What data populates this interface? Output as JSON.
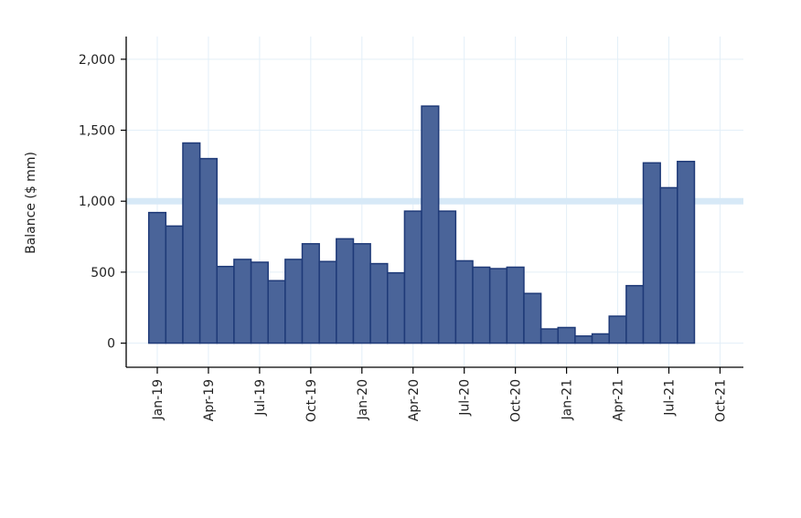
{
  "chart_data": {
    "type": "bar",
    "title": "",
    "xlabel": "",
    "ylabel": "Balance ($ mm)",
    "ylim": [
      -170,
      2160
    ],
    "yticks": [
      0,
      500,
      1000,
      1500,
      2000
    ],
    "ytick_labels": [
      "0",
      "500",
      "1,000",
      "1,500",
      "2,000"
    ],
    "x_tick_labels": [
      "Jan-19",
      "Apr-19",
      "Jul-19",
      "Oct-19",
      "Jan-20",
      "Apr-20",
      "Jul-20",
      "Oct-20",
      "Jan-21",
      "Apr-21",
      "Jul-21",
      "Oct-21"
    ],
    "grid": true,
    "reference_line": 1000,
    "categories": [
      "Jan-19",
      "Feb-19",
      "Mar-19",
      "Apr-19",
      "May-19",
      "Jun-19",
      "Jul-19",
      "Aug-19",
      "Sep-19",
      "Oct-19",
      "Nov-19",
      "Dec-19",
      "Jan-20",
      "Feb-20",
      "Mar-20",
      "Apr-20",
      "May-20",
      "Jun-20",
      "Jul-20",
      "Aug-20",
      "Sep-20",
      "Oct-20",
      "Nov-20",
      "Dec-20",
      "Jan-21",
      "Feb-21",
      "Mar-21",
      "Apr-21",
      "May-21",
      "Jun-21",
      "Jul-21",
      "Aug-21"
    ],
    "values": [
      920,
      825,
      1410,
      1300,
      540,
      590,
      570,
      440,
      590,
      700,
      575,
      735,
      700,
      560,
      495,
      930,
      1670,
      930,
      580,
      535,
      525,
      535,
      350,
      100,
      110,
      50,
      65,
      190,
      405,
      1270,
      1095,
      1280
    ],
    "colors": {
      "bar_fill": "#4a6499",
      "bar_stroke": "#1f3a78",
      "grid": "#e3eff8",
      "reference": "#d7e9f7",
      "axis": "#000000"
    }
  }
}
